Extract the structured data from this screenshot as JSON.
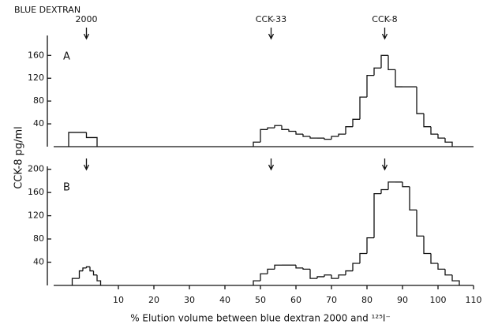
{
  "chart_data": [
    {
      "type": "histogram",
      "header": "BLUE DEXTRAN",
      "label": "A",
      "ylabel": "CCK-8 pg/ml",
      "bins": [
        -4,
        1,
        4,
        48,
        50,
        52,
        54,
        56,
        58,
        60,
        62,
        64,
        66,
        68,
        70,
        72,
        74,
        76,
        78,
        80,
        82,
        84,
        86,
        88,
        90,
        92,
        94,
        96,
        98,
        100,
        102,
        104
      ],
      "values": [
        25,
        16,
        null,
        8,
        30,
        33,
        37,
        30,
        27,
        22,
        18,
        15,
        15,
        13,
        18,
        22,
        35,
        48,
        87,
        125,
        138,
        160,
        135,
        105,
        105,
        105,
        58,
        35,
        22,
        15,
        8
      ],
      "color": "#111111",
      "xlim": [
        -10,
        110
      ],
      "ylim": [
        0,
        195
      ],
      "yticks": [
        40,
        80,
        120,
        160
      ],
      "arrows": [
        {
          "x": 1,
          "label": "2000"
        },
        {
          "x": 53,
          "label": "CCK-33"
        },
        {
          "x": 85,
          "label": "CCK-8"
        }
      ]
    },
    {
      "type": "histogram",
      "label": "B",
      "xlabel": "% Elution volume between blue dextran 2000 and ¹²⁵I⁻",
      "bins": [
        -3,
        -1,
        0,
        1,
        2,
        3,
        4,
        5,
        48,
        50,
        52,
        54,
        56,
        58,
        60,
        62,
        64,
        66,
        68,
        70,
        72,
        74,
        76,
        78,
        80,
        82,
        84,
        86,
        88,
        90,
        92,
        94,
        96,
        98,
        100,
        102,
        104,
        106
      ],
      "values": [
        12,
        25,
        30,
        32,
        25,
        18,
        8,
        null,
        8,
        20,
        28,
        35,
        35,
        35,
        30,
        28,
        12,
        15,
        18,
        12,
        18,
        25,
        38,
        55,
        82,
        158,
        165,
        178,
        178,
        170,
        130,
        85,
        55,
        38,
        28,
        18,
        8
      ],
      "color": "#111111",
      "xlim": [
        -10,
        110
      ],
      "xticks": [
        10,
        20,
        30,
        40,
        50,
        60,
        70,
        80,
        90,
        100,
        110
      ],
      "ylim": [
        0,
        205
      ],
      "yticks": [
        40,
        80,
        120,
        160,
        200
      ],
      "arrows": [
        {
          "x": 1
        },
        {
          "x": 53
        },
        {
          "x": 85
        }
      ]
    }
  ]
}
